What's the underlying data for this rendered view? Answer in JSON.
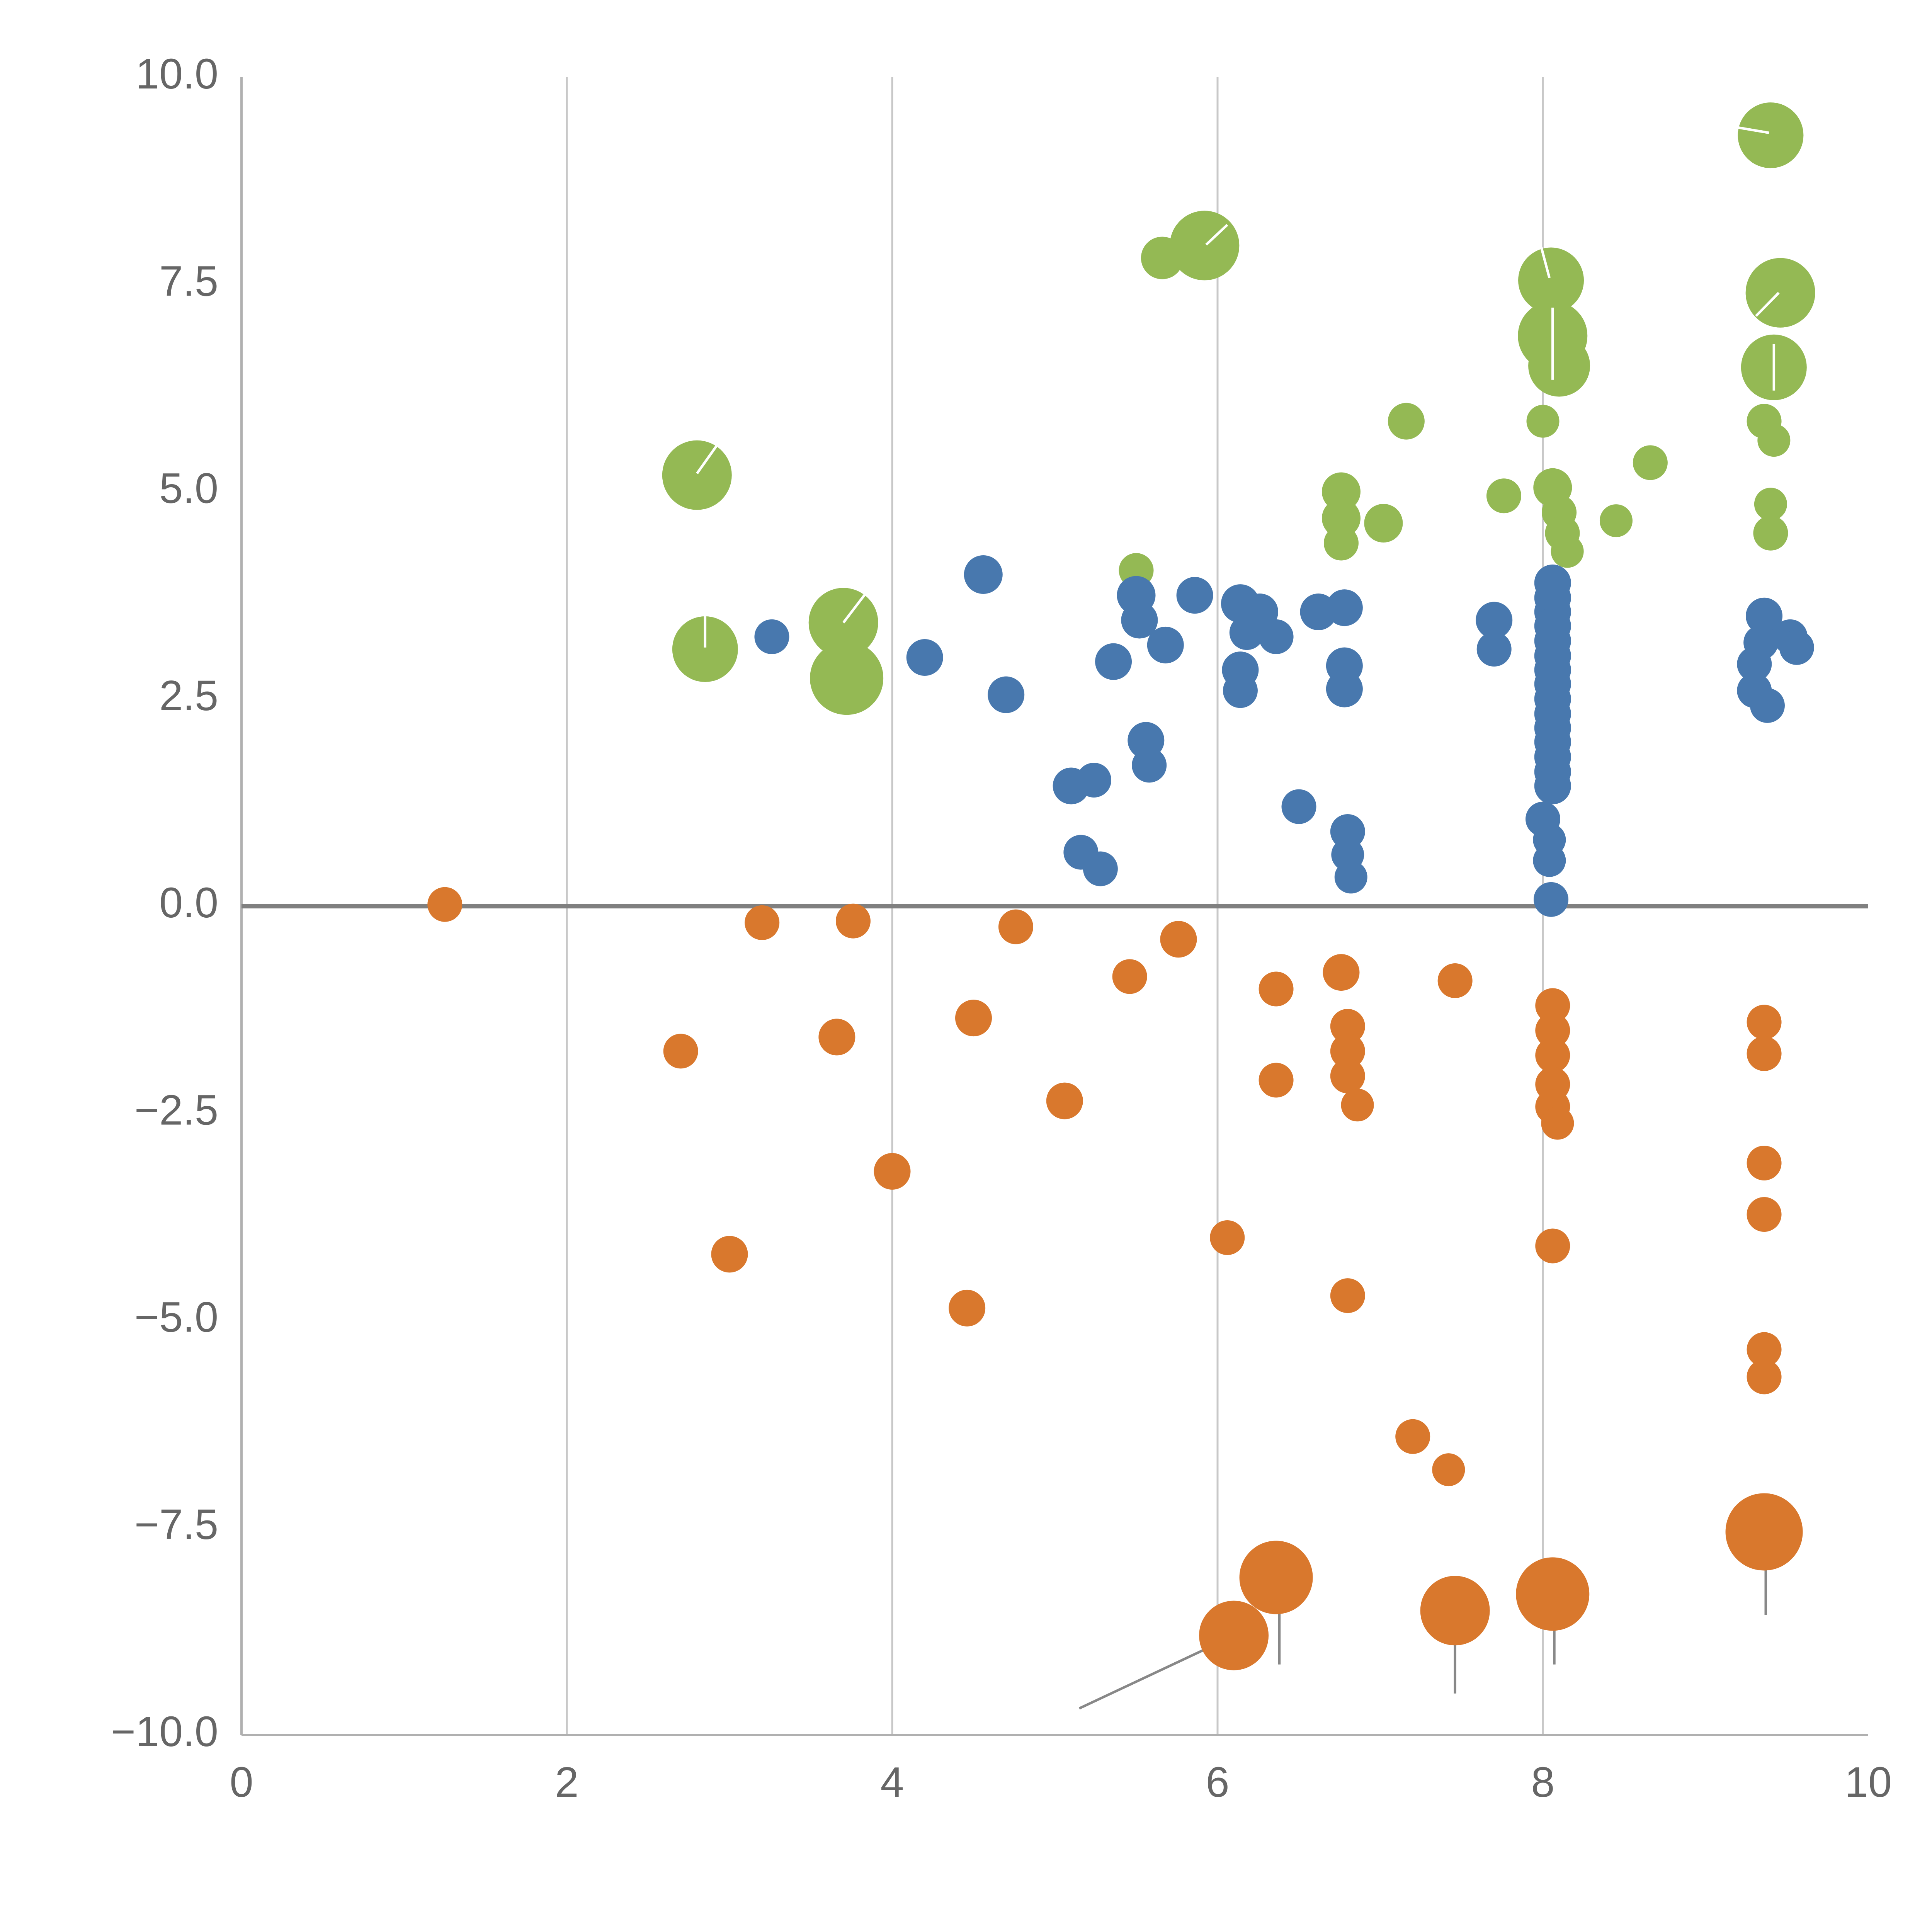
{
  "chart_data": {
    "type": "scatter",
    "title": "",
    "xlabel": "",
    "ylabel": "",
    "xlim": [
      0,
      10
    ],
    "ylim": [
      -10,
      10
    ],
    "grid": "vertical gridlines at x = 2, 4, 6, 8; emphasized horizontal line at y = 0; no top/right spines",
    "legend_position": "none",
    "x_ticks": [
      {
        "value": 0,
        "label": "0"
      },
      {
        "value": 2,
        "label": "2"
      },
      {
        "value": 4,
        "label": "4"
      },
      {
        "value": 6,
        "label": "6"
      },
      {
        "value": 8,
        "label": "8"
      },
      {
        "value": 10,
        "label": "10"
      }
    ],
    "y_ticks": [
      {
        "value": 10,
        "label": "10.0"
      },
      {
        "value": 7.5,
        "label": "7.5"
      },
      {
        "value": 5,
        "label": "5.0"
      },
      {
        "value": 2.5,
        "label": "2.5"
      },
      {
        "value": 0,
        "label": "0.0"
      },
      {
        "value": -2.5,
        "label": "−2.5"
      },
      {
        "value": -5,
        "label": "−5.0"
      },
      {
        "value": -7.5,
        "label": "−7.5"
      },
      {
        "value": -10,
        "label": "−10.0"
      }
    ],
    "colors": {
      "green": "#94b954",
      "blue": "#4878ae",
      "orange": "#d9782d",
      "grid_line": "#c8c8c8",
      "zero_line": "#808080",
      "spine": "#b0b0b0",
      "tick_label": "#666666",
      "whisker": "#888888",
      "white_tick": "#ffffff"
    },
    "series": [
      {
        "name": "green",
        "color_key": "green",
        "points": [
          [
            2.8,
            5.2,
            18
          ],
          [
            2.85,
            3.1,
            17
          ],
          [
            3.7,
            3.42,
            18
          ],
          [
            3.72,
            2.75,
            19
          ],
          [
            5.5,
            4.05,
            9
          ],
          [
            5.66,
            7.82,
            11
          ],
          [
            5.92,
            7.97,
            18
          ],
          [
            6.76,
            5.0,
            10
          ],
          [
            6.76,
            4.68,
            10
          ],
          [
            6.76,
            4.38,
            9
          ],
          [
            7.02,
            4.62,
            10
          ],
          [
            7.16,
            5.85,
            9.5
          ],
          [
            7.76,
            4.95,
            9
          ],
          [
            8.05,
            7.55,
            17
          ],
          [
            8.06,
            6.88,
            18
          ],
          [
            8.1,
            6.52,
            16
          ],
          [
            8.0,
            5.85,
            8.5
          ],
          [
            8.06,
            5.05,
            10
          ],
          [
            8.1,
            4.75,
            9
          ],
          [
            8.12,
            4.5,
            9
          ],
          [
            8.15,
            4.28,
            8.5
          ],
          [
            8.45,
            4.65,
            8.5
          ],
          [
            8.66,
            5.35,
            9
          ],
          [
            9.4,
            9.3,
            17
          ],
          [
            9.46,
            7.4,
            18
          ],
          [
            9.42,
            6.5,
            17
          ],
          [
            9.36,
            5.85,
            9
          ],
          [
            9.42,
            5.62,
            8.5
          ],
          [
            9.4,
            4.85,
            8.5
          ],
          [
            9.4,
            4.5,
            9
          ]
        ]
      },
      {
        "name": "blue",
        "color_key": "blue",
        "points": [
          [
            3.26,
            3.25,
            9
          ],
          [
            4.2,
            3.0,
            9.5
          ],
          [
            4.56,
            4.0,
            10
          ],
          [
            4.7,
            2.55,
            9.5
          ],
          [
            5.1,
            1.45,
            9.5
          ],
          [
            5.24,
            1.52,
            9
          ],
          [
            5.16,
            0.65,
            9
          ],
          [
            5.28,
            0.45,
            9
          ],
          [
            5.36,
            2.95,
            9.5
          ],
          [
            5.5,
            3.75,
            10
          ],
          [
            5.52,
            3.45,
            9.5
          ],
          [
            5.56,
            2.0,
            9.5
          ],
          [
            5.58,
            1.7,
            9
          ],
          [
            5.68,
            3.15,
            9.5
          ],
          [
            5.86,
            3.75,
            9.5
          ],
          [
            6.14,
            3.65,
            10
          ],
          [
            6.26,
            3.55,
            9.5
          ],
          [
            6.18,
            3.3,
            9
          ],
          [
            6.14,
            2.85,
            9.5
          ],
          [
            6.14,
            2.6,
            9
          ],
          [
            6.36,
            3.25,
            9
          ],
          [
            6.5,
            1.2,
            9
          ],
          [
            6.62,
            3.55,
            9.5
          ],
          [
            6.78,
            3.6,
            9.5
          ],
          [
            6.78,
            2.9,
            9.5
          ],
          [
            6.78,
            2.62,
            9.5
          ],
          [
            6.8,
            0.9,
            9
          ],
          [
            6.8,
            0.62,
            8.5
          ],
          [
            6.82,
            0.35,
            8.5
          ],
          [
            7.7,
            3.45,
            9.5
          ],
          [
            7.7,
            3.1,
            9
          ],
          [
            8.0,
            1.05,
            9
          ],
          [
            8.04,
            0.8,
            8.5
          ],
          [
            8.04,
            0.55,
            8.5
          ],
          [
            8.05,
            0.08,
            9
          ],
          [
            8.06,
            3.9,
            9.5
          ],
          [
            8.06,
            3.72,
            9.5
          ],
          [
            8.06,
            3.55,
            9.5
          ],
          [
            8.06,
            3.38,
            9.5
          ],
          [
            8.06,
            3.2,
            9.5
          ],
          [
            8.06,
            3.02,
            9.5
          ],
          [
            8.06,
            2.85,
            9.5
          ],
          [
            8.06,
            2.68,
            9.5
          ],
          [
            8.06,
            2.5,
            9.5
          ],
          [
            8.06,
            2.32,
            9.5
          ],
          [
            8.06,
            2.15,
            9.5
          ],
          [
            8.06,
            1.98,
            9.5
          ],
          [
            8.06,
            1.8,
            9.5
          ],
          [
            8.06,
            1.62,
            9.5
          ],
          [
            8.06,
            1.45,
            9.5
          ],
          [
            9.36,
            3.5,
            9.5
          ],
          [
            9.52,
            3.25,
            9
          ],
          [
            9.56,
            3.12,
            9
          ],
          [
            9.34,
            3.18,
            9
          ],
          [
            9.3,
            2.92,
            9
          ],
          [
            9.3,
            2.6,
            9
          ],
          [
            9.38,
            2.42,
            9
          ]
        ]
      },
      {
        "name": "orange",
        "color_key": "orange",
        "points": [
          [
            1.25,
            0.02,
            9
          ],
          [
            3.2,
            -0.2,
            9
          ],
          [
            3.76,
            -0.18,
            9
          ],
          [
            4.76,
            -0.25,
            9
          ],
          [
            5.76,
            -0.4,
            9.5
          ],
          [
            2.7,
            -1.75,
            9
          ],
          [
            3.66,
            -1.58,
            9.5
          ],
          [
            4.5,
            -1.35,
            9.5
          ],
          [
            5.46,
            -0.85,
            9
          ],
          [
            5.06,
            -2.35,
            9.5
          ],
          [
            3.0,
            -4.2,
            9.5
          ],
          [
            4.0,
            -3.2,
            9.5
          ],
          [
            4.46,
            -4.85,
            9.5
          ],
          [
            6.36,
            -1.0,
            9
          ],
          [
            6.36,
            -2.1,
            9
          ],
          [
            6.06,
            -4.0,
            9
          ],
          [
            6.76,
            -0.8,
            9.5
          ],
          [
            6.8,
            -1.45,
            9
          ],
          [
            6.8,
            -1.75,
            9
          ],
          [
            6.8,
            -2.05,
            9
          ],
          [
            6.86,
            -2.4,
            8.5
          ],
          [
            6.8,
            -4.7,
            9
          ],
          [
            7.46,
            -0.9,
            9
          ],
          [
            7.2,
            -6.4,
            9
          ],
          [
            7.42,
            -6.8,
            8.5
          ],
          [
            8.06,
            -1.2,
            9
          ],
          [
            8.06,
            -1.5,
            9
          ],
          [
            8.06,
            -1.8,
            9
          ],
          [
            8.06,
            -2.15,
            9
          ],
          [
            8.06,
            -2.42,
            9
          ],
          [
            8.09,
            -2.62,
            8.5
          ],
          [
            8.06,
            -4.1,
            9
          ],
          [
            9.36,
            -1.4,
            9
          ],
          [
            9.36,
            -1.78,
            9
          ],
          [
            9.36,
            -3.1,
            9
          ],
          [
            9.36,
            -3.72,
            9
          ],
          [
            9.36,
            -5.35,
            9
          ],
          [
            9.36,
            -5.68,
            9
          ],
          [
            6.1,
            -8.8,
            18
          ],
          [
            6.36,
            -8.1,
            19
          ],
          [
            7.46,
            -8.5,
            18
          ],
          [
            8.06,
            -8.3,
            19
          ],
          [
            9.36,
            -7.55,
            20
          ]
        ]
      }
    ],
    "whiskers": [
      {
        "x1": 5.15,
        "y1": -9.68,
        "x2": 6.05,
        "y2": -8.85
      },
      {
        "x1": 6.38,
        "y1": -8.4,
        "x2": 6.38,
        "y2": -9.15
      },
      {
        "x1": 7.46,
        "y1": -8.65,
        "x2": 7.46,
        "y2": -9.5
      },
      {
        "x1": 8.07,
        "y1": -8.5,
        "x2": 8.07,
        "y2": -9.15
      },
      {
        "x1": 9.37,
        "y1": -7.75,
        "x2": 9.37,
        "y2": -8.55
      }
    ],
    "white_ticks": [
      {
        "x1": 2.8,
        "y1": 5.22,
        "x2": 2.93,
        "y2": 5.58
      },
      {
        "x1": 2.85,
        "y1": 3.12,
        "x2": 2.85,
        "y2": 3.52
      },
      {
        "x1": 3.7,
        "y1": 3.42,
        "x2": 3.84,
        "y2": 3.78
      },
      {
        "x1": 5.93,
        "y1": 7.98,
        "x2": 6.06,
        "y2": 8.22
      },
      {
        "x1": 8.04,
        "y1": 7.58,
        "x2": 7.99,
        "y2": 7.95
      },
      {
        "x1": 8.06,
        "y1": 6.35,
        "x2": 8.06,
        "y2": 7.22
      },
      {
        "x1": 9.18,
        "y1": 9.4,
        "x2": 9.39,
        "y2": 9.33
      },
      {
        "x1": 9.31,
        "y1": 7.12,
        "x2": 9.45,
        "y2": 7.4
      },
      {
        "x1": 9.42,
        "y1": 6.22,
        "x2": 9.42,
        "y2": 6.78
      }
    ]
  }
}
